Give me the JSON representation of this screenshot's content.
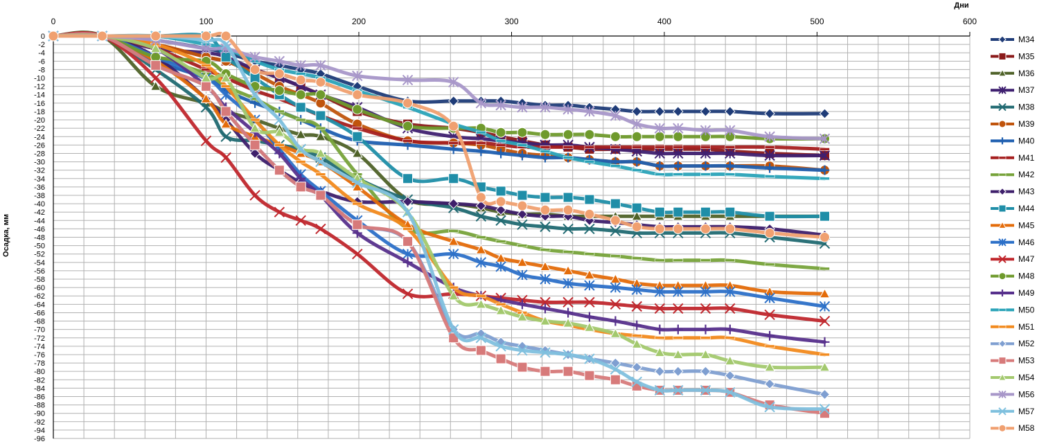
{
  "chart_data": {
    "type": "line",
    "xlabel": "Дни",
    "ylabel": "Осадка, мм",
    "xlim": [
      0,
      600
    ],
    "ylim": [
      -96,
      0
    ],
    "x_ticks": [
      "0",
      "100",
      "200",
      "300",
      "400",
      "500",
      "600"
    ],
    "y_ticks": [
      "0",
      "-2",
      "-4",
      "-6",
      "-8",
      "-10",
      "-12",
      "-14",
      "-16",
      "-18",
      "-20",
      "-22",
      "-24",
      "-26",
      "-28",
      "-30",
      "-32",
      "-34",
      "-36",
      "-38",
      "-40",
      "-42",
      "-44",
      "-46",
      "-48",
      "-50",
      "-52",
      "-54",
      "-56",
      "-58",
      "-60",
      "-62",
      "-64",
      "-66",
      "-68",
      "-70",
      "-72",
      "-74",
      "-76",
      "-78",
      "-80",
      "-82",
      "-84",
      "-86",
      "-88",
      "-90",
      "-92",
      "-94",
      "-96"
    ],
    "grid": true,
    "legend_position": "right",
    "x": [
      0,
      32,
      67,
      100,
      113,
      132,
      148,
      162,
      175,
      199,
      232,
      262,
      280,
      293,
      307,
      322,
      337,
      351,
      368,
      382,
      397,
      409,
      427,
      443,
      469,
      505
    ],
    "series": [
      {
        "name": "M34",
        "color": "#1f3c78",
        "marker": "diamond",
        "values": [
          0,
          0,
          -1,
          -3,
          -4,
          -6,
          -7,
          -8,
          -9,
          -12,
          -15.5,
          -15.5,
          -15.5,
          -15.5,
          -16,
          -16.5,
          -16.5,
          -17,
          -17.5,
          -18,
          -18,
          -18,
          -18,
          -18,
          -18.5,
          -18.5
        ]
      },
      {
        "name": "M35",
        "color": "#8b1a1a",
        "marker": "square",
        "values": [
          0,
          0,
          -2,
          -5,
          -6,
          -8,
          -10,
          -12,
          -14,
          -18,
          -21,
          -22,
          -23,
          -24,
          -25,
          -26,
          -26.5,
          -27,
          -27,
          -27,
          -27,
          -27,
          -27,
          -27.5,
          -28,
          -28.5
        ]
      },
      {
        "name": "M36",
        "color": "#4f6228",
        "marker": "triangle",
        "values": [
          0,
          0,
          -12,
          -16,
          -18,
          -20,
          -22,
          -23.5,
          -24,
          -28,
          -39,
          -40,
          -41,
          -42,
          -42.5,
          -42.5,
          -43,
          -43,
          -43,
          -43,
          -43,
          -43,
          -43,
          -43,
          -43,
          -43
        ]
      },
      {
        "name": "M37",
        "color": "#3f2070",
        "marker": "star",
        "values": [
          0,
          0,
          -3,
          -4,
          -5,
          -8,
          -10,
          -12,
          -14,
          -17,
          -22,
          -24,
          -24.5,
          -25,
          -25.5,
          -26,
          -26,
          -26.5,
          -27,
          -27.5,
          -28,
          -28,
          -28,
          -28,
          -28.5,
          -28.5
        ]
      },
      {
        "name": "M38",
        "color": "#216a72",
        "marker": "x",
        "values": [
          0,
          0,
          -8,
          -17,
          -24,
          -25,
          -26,
          -27,
          -29,
          -34,
          -39,
          -41,
          -43,
          -44,
          -45,
          -45.5,
          -46,
          -46,
          -46.5,
          -47,
          -47,
          -47,
          -47,
          -47,
          -48,
          -49.5
        ]
      },
      {
        "name": "M39",
        "color": "#c0540c",
        "marker": "circle",
        "values": [
          0,
          0,
          -2,
          -5,
          -6,
          -9,
          -12,
          -14,
          -16,
          -21,
          -25,
          -25.5,
          -26,
          -27,
          -28,
          -28.5,
          -29,
          -29.5,
          -30,
          -30,
          -31,
          -31,
          -31,
          -31,
          -31,
          -32
        ]
      },
      {
        "name": "M40",
        "color": "#1f5fb0",
        "marker": "plus",
        "values": [
          0,
          0,
          -6,
          -10,
          -13,
          -16,
          -18,
          -20,
          -22,
          -25,
          -26,
          -27,
          -27.5,
          -28,
          -28.5,
          -29,
          -29,
          -29.5,
          -30,
          -30,
          -31,
          -31,
          -31,
          -31,
          -31.5,
          -32
        ]
      },
      {
        "name": "M41",
        "color": "#a51f1f",
        "marker": "dash",
        "values": [
          0,
          0,
          -3,
          -8,
          -10,
          -13,
          -15,
          -17,
          -19,
          -22,
          -25,
          -25.5,
          -25.5,
          -26,
          -26.5,
          -26.5,
          -26.5,
          -26.5,
          -26.5,
          -26.5,
          -26.5,
          -26.5,
          -26.5,
          -26.5,
          -26.5,
          -27
        ]
      },
      {
        "name": "M42",
        "color": "#77a33a",
        "marker": "dash",
        "values": [
          0,
          0,
          -5,
          -9,
          -12,
          -15,
          -18,
          -20,
          -22,
          -33,
          -46,
          -46.5,
          -48,
          -49,
          -50,
          -51,
          -51.5,
          -52,
          -52.5,
          -53,
          -53.5,
          -53.5,
          -53.5,
          -53.5,
          -54.5,
          -55.5
        ]
      },
      {
        "name": "M43",
        "color": "#3e1f6b",
        "marker": "diamond",
        "values": [
          0,
          0,
          -5,
          -15,
          -20,
          -28,
          -32,
          -35,
          -37,
          -39.5,
          -39.5,
          -40,
          -40.5,
          -41.5,
          -42.5,
          -43,
          -43,
          -44,
          -44.5,
          -45,
          -45.5,
          -45.5,
          -45.5,
          -45.5,
          -46,
          -47.5
        ]
      },
      {
        "name": "M44",
        "color": "#1f8ea8",
        "marker": "square",
        "values": [
          0,
          0,
          0,
          0,
          -5,
          -10,
          -14,
          -17,
          -19,
          -24,
          -34,
          -34,
          -36,
          -37,
          -38,
          -38.5,
          -38.5,
          -39,
          -40,
          -41,
          -42,
          -42,
          -42,
          -42,
          -43,
          -43
        ]
      },
      {
        "name": "M45",
        "color": "#e46c0a",
        "marker": "triangle",
        "values": [
          0,
          0,
          -6,
          -15,
          -21,
          -24,
          -26,
          -28,
          -30,
          -36,
          -45,
          -49,
          -51,
          -53,
          -54,
          -55,
          -56,
          -57,
          -58,
          -59,
          -59.5,
          -59.5,
          -59.5,
          -59.5,
          -61,
          -61.5
        ]
      },
      {
        "name": "M46",
        "color": "#2c70c8",
        "marker": "star",
        "values": [
          0,
          0,
          -5,
          -10,
          -14,
          -20,
          -27,
          -33,
          -37,
          -44,
          -52,
          -52,
          -54,
          -55,
          -57,
          -58,
          -59,
          -59.5,
          -60,
          -60.5,
          -61,
          -61,
          -61,
          -61,
          -62.5,
          -64.5
        ]
      },
      {
        "name": "M47",
        "color": "#c0272d",
        "marker": "x",
        "values": [
          0,
          0,
          -10,
          -25,
          -29,
          -38,
          -42,
          -44,
          -46,
          -52,
          -61.5,
          -61.5,
          -62,
          -62.5,
          -63,
          -63.5,
          -63.5,
          -63.5,
          -64,
          -64.5,
          -65,
          -65,
          -65,
          -65,
          -66.5,
          -68
        ]
      },
      {
        "name": "M48",
        "color": "#6f9a2c",
        "marker": "circle",
        "values": [
          0,
          0,
          -5,
          -6,
          -9,
          -12,
          -13,
          -14,
          -14,
          -17.5,
          -21.5,
          -22,
          -22,
          -23,
          -23,
          -23.5,
          -23.5,
          -23.5,
          -24,
          -24,
          -24,
          -24,
          -24,
          -24,
          -24.5,
          -24.5
        ]
      },
      {
        "name": "M49",
        "color": "#57308c",
        "marker": "plus",
        "values": [
          0,
          0,
          -3,
          -12,
          -17,
          -23,
          -28,
          -34,
          -38,
          -47,
          -54,
          -60,
          -62,
          -63,
          -64,
          -65,
          -66,
          -67,
          -68,
          -69,
          -70,
          -70,
          -70,
          -70,
          -71.5,
          -73
        ]
      },
      {
        "name": "M50",
        "color": "#2aa3b8",
        "marker": "dash",
        "values": [
          0,
          0,
          0,
          -2,
          -3,
          -6,
          -8,
          -9,
          -10,
          -13,
          -17,
          -21,
          -23,
          -25,
          -26,
          -27.5,
          -29,
          -30,
          -31,
          -32,
          -33,
          -33,
          -33,
          -33,
          -33.5,
          -34
        ]
      },
      {
        "name": "M51",
        "color": "#f28a1e",
        "marker": "dash",
        "values": [
          0,
          0,
          -2,
          -7,
          -12,
          -20,
          -26,
          -30,
          -33,
          -40,
          -46,
          -60,
          -62,
          -64,
          -66,
          -68,
          -69,
          -70,
          -71,
          -71.5,
          -72,
          -72,
          -72,
          -72,
          -74,
          -76
        ]
      },
      {
        "name": "M52",
        "color": "#7f9fd1",
        "marker": "diamond",
        "values": [
          0,
          0,
          -7,
          -12,
          -18,
          -26,
          -32,
          -36,
          -38,
          -45,
          -49,
          -70,
          -71,
          -73,
          -74,
          -75,
          -76,
          -77,
          -78,
          -79,
          -80,
          -80,
          -80,
          -81,
          -83,
          -85.5
        ]
      },
      {
        "name": "M53",
        "color": "#d77a7a",
        "marker": "square",
        "values": [
          0,
          0,
          -7,
          -12,
          -18,
          -26,
          -32,
          -36,
          -38,
          -45,
          -49,
          -72,
          -75,
          -77,
          -79,
          -80,
          -80,
          -81,
          -82,
          -83.5,
          -84.5,
          -84.5,
          -84.5,
          -85,
          -88,
          -90
        ]
      },
      {
        "name": "M54",
        "color": "#a3c96e",
        "marker": "triangle",
        "values": [
          0,
          0,
          -3,
          -10,
          -10,
          -22,
          -23,
          -27,
          -28,
          -34,
          -42,
          -62,
          -64,
          -65.5,
          -67,
          -68,
          -68.5,
          -69.5,
          -71,
          -73.5,
          -75.5,
          -76,
          -76,
          -77.5,
          -79,
          -79
        ]
      },
      {
        "name": "M56",
        "color": "#a897c9",
        "marker": "star",
        "values": [
          0,
          0,
          -1,
          -3,
          -3,
          -5,
          -6,
          -7,
          -7,
          -9.5,
          -10.5,
          -11,
          -16,
          -16.5,
          -17,
          -17,
          -17.5,
          -18,
          -19,
          -21,
          -22,
          -22,
          -22.5,
          -22.5,
          -24,
          -24.5
        ]
      },
      {
        "name": "M57",
        "color": "#7fc0de",
        "marker": "x",
        "values": [
          0,
          0,
          0,
          -1,
          -2,
          -14,
          -20,
          -27,
          -30,
          -35,
          -42,
          -70,
          -72,
          -74,
          -75,
          -75.5,
          -76,
          -77,
          -79.5,
          -82.5,
          -84.5,
          -84.5,
          -84.5,
          -85,
          -88.5,
          -89
        ]
      },
      {
        "name": "M58",
        "color": "#f0a070",
        "marker": "circle",
        "values": [
          0,
          0,
          0,
          0,
          0,
          -8,
          -9,
          -10.5,
          -11,
          -14,
          -16,
          -21.5,
          -38.5,
          -39.5,
          -40.5,
          -41.5,
          -41.5,
          -42.5,
          -44,
          -45.5,
          -46,
          -46,
          -46,
          -46,
          -47,
          -48
        ]
      }
    ]
  }
}
